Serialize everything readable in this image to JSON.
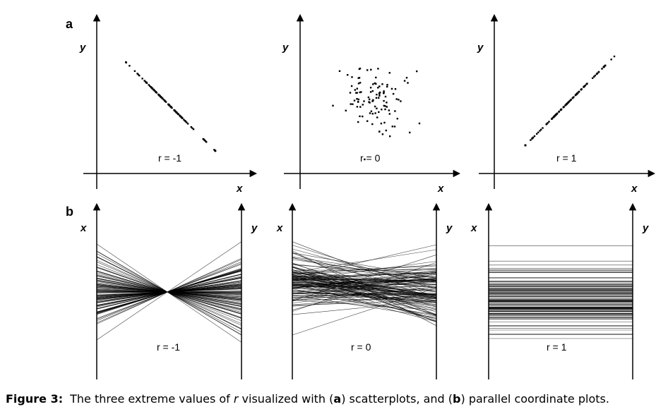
{
  "figure": {
    "row_a_label": "a",
    "row_b_label": "b",
    "scatter_panels": [
      {
        "x_label": "x",
        "y_label": "y",
        "r_text": "r = -1",
        "r": -1
      },
      {
        "x_label": "x",
        "y_label": "y",
        "r_text": "r = 0",
        "r": 0
      },
      {
        "x_label": "x",
        "y_label": "y",
        "r_text": "r = 1",
        "r": 1
      }
    ],
    "parallel_panels": [
      {
        "left_label": "x",
        "right_label": "y",
        "r_text": "r = -1",
        "r": -1
      },
      {
        "left_label": "x",
        "right_label": "y",
        "r_text": "r = 0",
        "r": 0
      },
      {
        "left_label": "x",
        "right_label": "y",
        "r_text": "r = 1",
        "r": 1
      }
    ]
  },
  "caption": {
    "label": "Figure 3:",
    "text_before_r": "The three extreme values of ",
    "r_symbol": "r",
    "text_after_r": " visualized with (",
    "a_letter": "a",
    "text_after_a": ") scatterplots, and (",
    "b_letter": "b",
    "text_after_b": ") parallel coordinate plots."
  }
}
